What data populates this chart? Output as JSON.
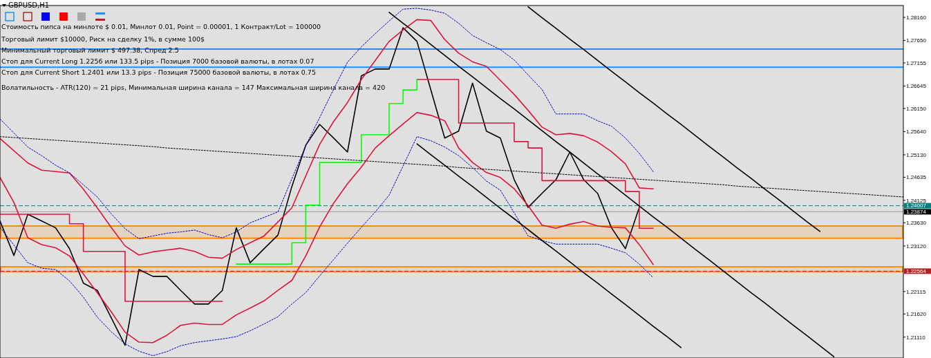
{
  "chart_data": {
    "type": "line",
    "title": "GBPUSD,H1",
    "annotations": [
      "Стоимость пипса на минлоте  $ 0.01,   Минлот 0.01,  Point = 0.00001,  1 Контракт/Lot = 100000",
      "Торговый лимит  $10000, Риск на сделку 1%,  в сумме 100$",
      "Минимальный торговый лимит  $ 497.38,    Спред  2.5",
      "Стоп для Current Long  1.2256  или  133.5 pips -  Позиция 7000 базовой валюты,  в лотах 0.07",
      "Стоп для Current Short 1.2401  или  13.3 pips -  Позиция 75000 базовой валюты,  в лотах 0.75",
      "Волатильность - ATR(120) = 21 pips,  Минимальная ширина канала = 147    Максимальная ширина канала = 420"
    ],
    "categories": [
      null,
      null,
      null,
      null,
      null,
      null,
      null,
      null,
      null,
      null,
      null,
      null,
      null,
      null,
      null,
      null,
      null,
      null,
      null,
      null,
      null,
      null,
      null,
      null,
      null,
      null,
      null,
      null,
      null,
      null,
      null,
      null,
      null,
      null,
      null,
      null,
      null,
      null,
      null,
      null,
      null,
      null,
      null,
      null,
      null,
      null,
      null,
      null,
      null,
      null,
      null,
      null,
      null,
      null,
      null,
      null,
      null,
      null,
      null,
      null,
      null,
      null,
      null,
      null,
      null,
      null
    ],
    "ylim": [
      1.2065,
      1.2842
    ],
    "yticks": [
      {
        "value": 1.2816,
        "label": "1.28160"
      },
      {
        "value": 1.2765,
        "label": "1.27650"
      },
      {
        "value": 1.27155,
        "label": "1.27155"
      },
      {
        "value": 1.26645,
        "label": "1.26645"
      },
      {
        "value": 1.2615,
        "label": "1.26150"
      },
      {
        "value": 1.2564,
        "label": "1.25640"
      },
      {
        "value": 1.2513,
        "label": "1.25130"
      },
      {
        "value": 1.24635,
        "label": "1.24635"
      },
      {
        "value": 1.24125,
        "label": "1.24125"
      },
      {
        "value": 1.2363,
        "label": "1.23630"
      },
      {
        "value": 1.2312,
        "label": "1.23120"
      },
      {
        "value": 1.22115,
        "label": "1.22115"
      },
      {
        "value": 1.2162,
        "label": "1.21620"
      },
      {
        "value": 1.2111,
        "label": "1.21110"
      }
    ],
    "tick_labels": "y",
    "series": [
      {
        "color": "#000000",
        "values": [
          1.2367,
          1.2291,
          1.2382,
          1.2367,
          1.2352,
          1.2306,
          1.223,
          1.2214,
          1.2154,
          1.2093,
          1.226,
          1.2245,
          1.2245,
          1.2214,
          1.2184,
          1.2184,
          1.2214,
          1.2352,
          1.2275,
          1.2306,
          1.2336,
          1.2443,
          1.2534,
          1.258,
          1.255,
          1.2519,
          1.2687,
          1.2702,
          1.2702,
          1.2793,
          1.2763,
          1.2656,
          1.255,
          1.2565,
          1.2671,
          1.2565,
          1.255,
          1.2458,
          1.2397,
          1.2428,
          1.2458,
          1.2519,
          1.2458,
          1.2428,
          1.2352,
          1.2306,
          1.2397,
          null,
          null,
          null,
          null,
          null,
          null,
          null,
          null,
          null,
          null,
          null,
          null,
          null,
          null,
          null,
          null,
          null,
          null,
          null
        ]
      },
      {
        "color": "#dc143c",
        "values": [
          1.2549,
          1.2522,
          1.2495,
          1.2479,
          1.2476,
          1.2473,
          1.2437,
          1.2396,
          1.2353,
          1.2312,
          1.2292,
          1.2299,
          1.2303,
          1.2307,
          1.23,
          1.2287,
          1.2285,
          1.2304,
          1.2319,
          1.2334,
          1.2365,
          1.2396,
          1.2466,
          1.2536,
          1.2586,
          1.2628,
          1.2679,
          1.2721,
          1.2763,
          1.2788,
          1.2811,
          1.2809,
          1.2767,
          1.2737,
          1.2718,
          1.2708,
          1.2677,
          1.2646,
          1.2611,
          1.2574,
          1.2557,
          1.256,
          1.2555,
          1.2541,
          1.252,
          1.2493,
          1.244,
          1.2438,
          null,
          null,
          null,
          null,
          null,
          null,
          null,
          null,
          null,
          null,
          null,
          null,
          null,
          null,
          null,
          null,
          null,
          null
        ]
      },
      {
        "color": "#dc143c",
        "values": [
          1.2463,
          1.2408,
          1.233,
          1.2315,
          1.2308,
          1.229,
          1.225,
          1.2209,
          1.2167,
          1.2122,
          1.21,
          1.2099,
          1.2115,
          1.2137,
          1.2142,
          1.2139,
          1.2139,
          1.216,
          1.2175,
          1.2191,
          1.2214,
          1.2236,
          1.229,
          1.2354,
          1.2406,
          1.2449,
          1.2486,
          1.2528,
          1.2555,
          1.2581,
          1.2606,
          1.26,
          1.2588,
          1.2528,
          1.2496,
          1.2474,
          1.2463,
          1.2438,
          1.2401,
          1.2358,
          1.2351,
          1.236,
          1.2366,
          1.2356,
          1.2353,
          1.2352,
          1.2315,
          1.2271,
          null,
          null,
          null,
          null,
          null,
          null,
          null,
          null,
          null,
          null,
          null,
          null,
          null,
          null,
          null,
          null,
          null,
          null
        ]
      },
      {
        "color": "#0000cd",
        "line_style": "dotted",
        "values": [
          1.2592,
          1.2561,
          1.253,
          1.2511,
          1.249,
          1.2473,
          1.2447,
          1.242,
          1.2383,
          1.235,
          1.2328,
          1.2334,
          1.234,
          1.2343,
          1.2347,
          1.2337,
          1.233,
          1.2343,
          1.2363,
          1.2375,
          1.2387,
          1.246,
          1.2533,
          1.2595,
          1.2657,
          1.2717,
          1.2751,
          1.278,
          1.2808,
          1.2834,
          1.2836,
          1.2832,
          1.2825,
          1.2803,
          1.2776,
          1.276,
          1.2745,
          1.2722,
          1.2689,
          1.2657,
          1.2603,
          1.2603,
          1.2603,
          1.2588,
          1.2576,
          1.255,
          1.2516,
          1.2476,
          null,
          null,
          null,
          null,
          null,
          null,
          null,
          null,
          null,
          null,
          null,
          null,
          null,
          null,
          null,
          null,
          null,
          null
        ]
      },
      {
        "color": "#0000cd",
        "line_style": "dotted",
        "values": [
          1.2353,
          1.2314,
          1.2275,
          1.2263,
          1.226,
          1.2235,
          1.2199,
          1.2155,
          1.2123,
          1.2096,
          1.208,
          1.207,
          1.2079,
          1.2092,
          1.2099,
          1.2103,
          1.2107,
          1.2112,
          1.2125,
          1.214,
          1.2156,
          1.2184,
          1.2209,
          1.2246,
          1.2282,
          1.2318,
          1.2353,
          1.2387,
          1.2424,
          1.2488,
          1.2553,
          1.2544,
          1.253,
          1.2511,
          1.2485,
          1.2455,
          1.2435,
          1.2385,
          1.2334,
          1.2324,
          1.2316,
          1.2316,
          1.2316,
          1.2316,
          1.2307,
          1.2297,
          1.2272,
          1.2242,
          null,
          null,
          null,
          null,
          null,
          null,
          null,
          null,
          null,
          null,
          null,
          null,
          null,
          null,
          null,
          null,
          null,
          null
        ]
      },
      {
        "type": "step",
        "color": "#dc143c",
        "values": [
          1.2382,
          1.2382,
          1.2382,
          1.2382,
          1.2382,
          1.2361,
          1.23,
          1.23,
          1.23,
          1.219,
          1.219,
          1.219,
          1.219,
          1.219,
          1.219,
          1.219,
          1.219,
          null,
          null,
          null,
          null,
          null,
          null,
          null,
          null,
          null,
          null,
          null,
          null,
          null,
          1.2679,
          1.2679,
          1.2679,
          1.2583,
          1.2583,
          1.2583,
          1.2583,
          1.2542,
          1.2528,
          1.2456,
          1.2456,
          1.2456,
          1.2456,
          1.2456,
          1.2456,
          1.2432,
          1.2351,
          1.2351,
          null,
          null,
          null,
          null,
          null,
          null,
          null,
          null,
          null,
          null,
          null,
          null,
          null,
          null,
          null,
          null,
          null,
          null
        ]
      },
      {
        "type": "step",
        "color": "#00ff00",
        "values": [
          null,
          null,
          null,
          null,
          null,
          null,
          null,
          null,
          null,
          null,
          null,
          null,
          null,
          null,
          null,
          null,
          null,
          1.2272,
          1.2272,
          1.2272,
          1.2272,
          1.2319,
          1.2402,
          1.2496,
          1.2496,
          1.2496,
          1.2557,
          1.2557,
          1.2626,
          1.2656,
          1.2679,
          null,
          null,
          null,
          null,
          null,
          null,
          null,
          null,
          null,
          null,
          null,
          null,
          null,
          null,
          null,
          null,
          null,
          null,
          null,
          null,
          null,
          null,
          null,
          null,
          null,
          null,
          null,
          null,
          null,
          null,
          null,
          null,
          null,
          null,
          null
        ]
      },
      {
        "color": "#000000",
        "line_style": "dotted",
        "values": [
          1.2553,
          1.2551,
          1.2549,
          1.2547,
          1.2545,
          1.2543,
          1.2541,
          1.2539,
          1.2537,
          1.2535,
          1.2533,
          1.2531,
          1.2528,
          1.2526,
          1.2524,
          1.2522,
          1.252,
          1.2518,
          1.2516,
          1.2514,
          1.2512,
          1.251,
          1.2508,
          1.2506,
          1.2504,
          1.2502,
          1.25,
          1.2498,
          1.2496,
          1.2494,
          1.2492,
          1.249,
          1.2488,
          1.2485,
          1.2483,
          1.2481,
          1.2479,
          1.2477,
          1.2475,
          1.2473,
          1.2471,
          1.2469,
          1.2467,
          1.2465,
          1.2463,
          1.2461,
          1.2459,
          1.2457,
          1.2455,
          1.2453,
          1.2451,
          1.2449,
          1.2447,
          1.2444,
          1.2442,
          1.244,
          1.2438,
          1.2436,
          1.2434,
          1.2432,
          1.243,
          1.2428,
          1.2426,
          1.2424,
          1.2422,
          1.242
        ]
      },
      {
        "color": "#000000",
        "values": [
          null,
          null,
          null,
          null,
          null,
          null,
          null,
          null,
          null,
          null,
          null,
          null,
          null,
          null,
          null,
          null,
          null,
          null,
          null,
          null,
          null,
          null,
          null,
          null,
          null,
          null,
          null,
          null,
          null,
          null,
          null,
          null,
          null,
          null,
          null,
          null,
          null,
          null,
          1.2839,
          1.2815,
          1.2792,
          1.2768,
          1.2745,
          1.2721,
          1.2697,
          1.2674,
          1.265,
          1.2627,
          1.2603,
          1.258,
          1.2556,
          1.2532,
          1.2509,
          1.2485,
          1.2462,
          1.2438,
          1.2415,
          1.2391,
          1.2367,
          1.2344,
          null,
          null,
          null,
          null,
          null,
          null
        ]
      },
      {
        "color": "#000000",
        "values": [
          null,
          null,
          null,
          null,
          null,
          null,
          null,
          null,
          null,
          null,
          null,
          null,
          null,
          null,
          null,
          null,
          null,
          null,
          null,
          null,
          null,
          null,
          null,
          null,
          null,
          null,
          null,
          null,
          1.2827,
          1.2803,
          1.278,
          1.2756,
          1.2732,
          1.2708,
          1.2685,
          1.2661,
          1.2637,
          1.2614,
          1.259,
          1.2566,
          1.2542,
          1.2519,
          1.2495,
          1.2471,
          1.2448,
          1.2424,
          1.24,
          1.2376,
          1.2353,
          1.2329,
          1.2305,
          1.2282,
          1.2258,
          1.2234,
          1.221,
          1.2187,
          1.2163,
          1.2139,
          1.2116,
          1.2092,
          1.2068,
          null,
          null,
          null,
          null,
          null
        ]
      },
      {
        "color": "#000000",
        "values": [
          null,
          null,
          null,
          null,
          null,
          null,
          null,
          null,
          null,
          null,
          null,
          null,
          null,
          null,
          null,
          null,
          null,
          null,
          null,
          null,
          null,
          null,
          null,
          null,
          null,
          null,
          null,
          null,
          null,
          null,
          1.2537,
          1.2513,
          1.249,
          1.2466,
          1.2443,
          1.2419,
          1.2395,
          1.2372,
          1.2348,
          1.2324,
          1.2301,
          1.2277,
          1.2253,
          1.223,
          1.2206,
          1.2183,
          1.2159,
          1.2135,
          1.2112,
          1.2088,
          null,
          null,
          null,
          null,
          null,
          null,
          null,
          null,
          null,
          null,
          null,
          null,
          null,
          null,
          null,
          null
        ]
      }
    ],
    "ref_lines": [
      {
        "axis": "y",
        "value": 1.2746,
        "color": "#1e90ff"
      },
      {
        "axis": "y",
        "value": 1.2706,
        "color": "#1e90ff"
      },
      {
        "axis": "y",
        "value": 1.24007,
        "label": "1.24007",
        "color": "#008080",
        "line_style": "dashed"
      },
      {
        "axis": "y",
        "value": 1.23874,
        "label": "1.23874",
        "color": "#000000",
        "line_style": "solid"
      },
      {
        "axis": "y",
        "value": 1.22564,
        "label": "1.22564",
        "color": "#b22222",
        "line_style": "dashed"
      }
    ],
    "bands": [
      {
        "axis": "y",
        "from": 1.2329,
        "to": 1.2356,
        "color": "#ff8c00"
      },
      {
        "axis": "y",
        "from": 1.2255,
        "to": 1.2266,
        "color": "#ff8c00"
      }
    ]
  }
}
